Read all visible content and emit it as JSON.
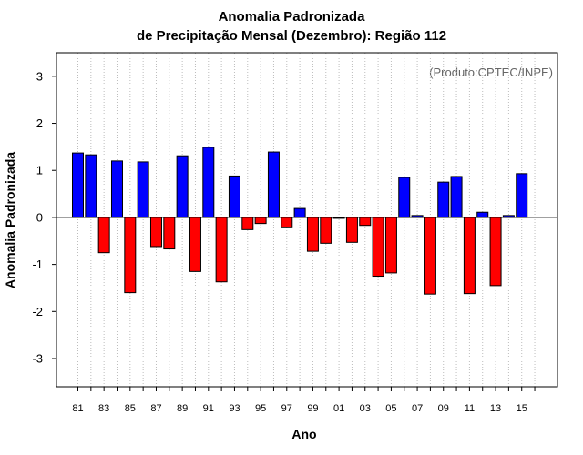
{
  "chart_data": {
    "type": "bar",
    "title_line1": "Anomalia Padronizada",
    "title_line2": "de Precipitação Mensal (Dezembro): Região 112",
    "credit": "(Produto:CPTEC/INPE)",
    "xlabel": "Ano",
    "ylabel": "Anomalia Padronizada",
    "ylim": [
      -3.6,
      3.5
    ],
    "yticks": [
      -3,
      -2,
      -1,
      0,
      1,
      2,
      3
    ],
    "positive_color": "#0000ff",
    "negative_color": "#ff0000",
    "categories": [
      "81",
      "82",
      "83",
      "84",
      "85",
      "86",
      "87",
      "88",
      "89",
      "90",
      "91",
      "92",
      "93",
      "94",
      "95",
      "96",
      "97",
      "98",
      "99",
      "00",
      "01",
      "02",
      "03",
      "04",
      "05",
      "06",
      "07",
      "08",
      "09",
      "10",
      "11",
      "12",
      "13",
      "14",
      "15"
    ],
    "xtick_labels": [
      "81",
      "83",
      "85",
      "87",
      "89",
      "91",
      "93",
      "95",
      "97",
      "99",
      "01",
      "03",
      "05",
      "07",
      "09",
      "11",
      "13",
      "15"
    ],
    "values": [
      1.37,
      1.33,
      -0.75,
      1.2,
      -1.6,
      1.18,
      -0.62,
      -0.67,
      1.31,
      -1.15,
      1.49,
      -1.37,
      0.88,
      -0.26,
      -0.13,
      1.39,
      -0.22,
      0.19,
      -0.72,
      -0.55,
      -0.02,
      -0.53,
      -0.17,
      -1.25,
      -1.18,
      0.85,
      0.04,
      -1.63,
      0.75,
      0.87,
      -1.62,
      0.11,
      -1.45,
      0.04,
      0.93
    ]
  }
}
